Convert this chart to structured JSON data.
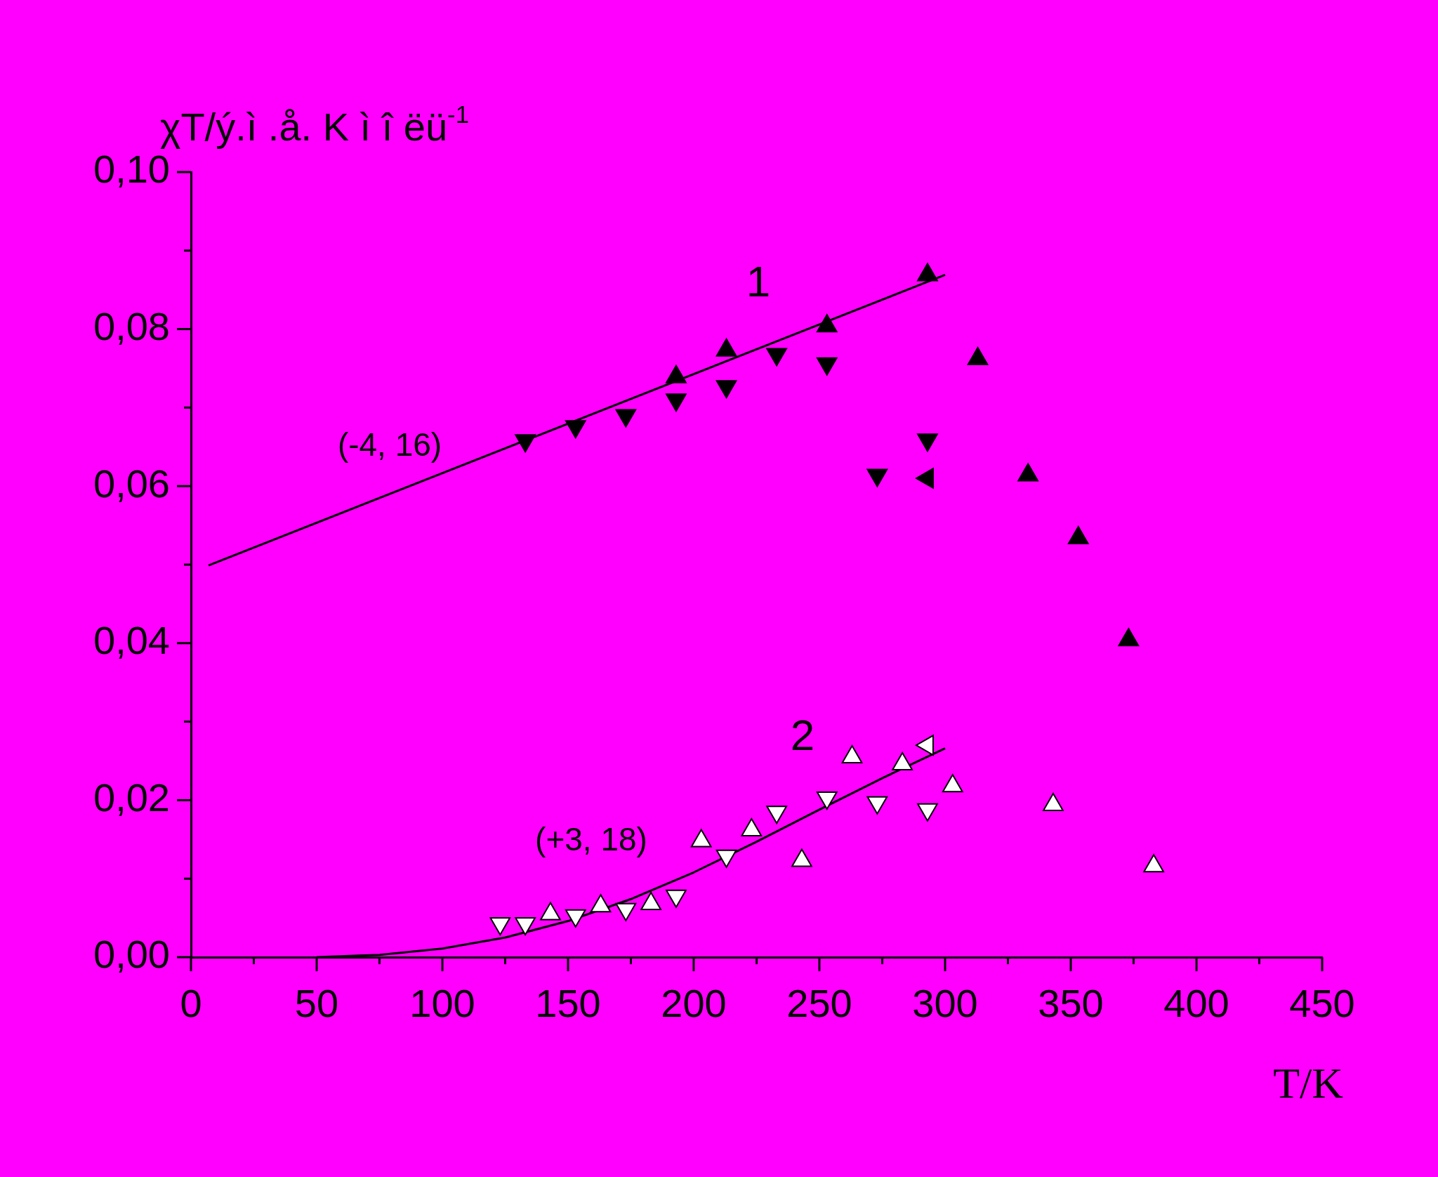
{
  "chart_data": {
    "type": "scatter",
    "xlabel": "T/K",
    "ylabel": "χT/ý.ì .å. K ì î ëü$^{-1}$",
    "xlim": [
      0,
      450
    ],
    "ylim": [
      0,
      0.1
    ],
    "xticks": [
      0,
      {
        "value": 25,
        "label": null
      },
      50,
      {
        "value": 75,
        "label": null
      },
      100,
      {
        "value": 125,
        "label": null
      },
      150,
      {
        "value": 175,
        "label": null
      },
      200,
      {
        "value": 225,
        "label": null
      },
      250,
      {
        "value": 275,
        "label": null
      },
      300,
      {
        "value": 325,
        "label": null
      },
      350,
      {
        "value": 375,
        "label": null
      },
      400,
      {
        "value": 425,
        "label": null
      },
      450
    ],
    "yticks": [
      {
        "value": 0,
        "label": "0,00"
      },
      {
        "value": 0.01,
        "label": null
      },
      {
        "value": 0.02,
        "label": "0,02"
      },
      {
        "value": 0.03,
        "label": null
      },
      {
        "value": 0.04,
        "label": "0,04"
      },
      {
        "value": 0.05,
        "label": null
      },
      {
        "value": 0.06,
        "label": "0,06"
      },
      {
        "value": 0.07,
        "label": null
      },
      {
        "value": 0.08,
        "label": "0,08"
      },
      {
        "value": 0.09,
        "label": null
      },
      {
        "value": 0.1,
        "label": "0,10"
      }
    ],
    "grid": false,
    "legend": false,
    "series": [
      {
        "type": "line",
        "color": "#000000",
        "marker": "none",
        "x": [
          7,
          300
        ],
        "values": [
          0.0499,
          0.0869
        ]
      },
      {
        "type": "line",
        "color": "#000000",
        "marker": "none",
        "x": [
          50,
          75,
          100,
          125,
          150,
          175,
          200,
          225,
          250,
          275,
          300
        ],
        "values": [
          0.0,
          0.0003,
          0.0011,
          0.0025,
          0.0046,
          0.0074,
          0.0108,
          0.0147,
          0.0188,
          0.0228,
          0.0266
        ]
      },
      {
        "color": "#000000",
        "marker": "triangle",
        "x": [
          193,
          213,
          253,
          293,
          313,
          333,
          353,
          373
        ],
        "values": [
          0.0739,
          0.0773,
          0.0804,
          0.0869,
          0.0762,
          0.0614,
          0.0534,
          0.0404
        ]
      },
      {
        "color": "#000000",
        "marker": "triangle-down",
        "x": [
          133,
          153,
          173,
          193,
          213,
          233,
          253,
          273,
          293
        ],
        "values": [
          0.0658,
          0.0676,
          0.069,
          0.071,
          0.0727,
          0.0768,
          0.0756,
          0.0614,
          0.0659
        ]
      },
      {
        "color": "#000000",
        "marker": "triangle-left",
        "x": [
          293
        ],
        "values": [
          0.061
        ]
      },
      {
        "color": "#ffffff",
        "marker": "triangle",
        "x": [
          143,
          163,
          183,
          203,
          223,
          243,
          263,
          283,
          303,
          343,
          383
        ],
        "values": [
          0.0055,
          0.0065,
          0.0068,
          0.0148,
          0.0162,
          0.0123,
          0.0255,
          0.0246,
          0.0218,
          0.0194,
          0.0116
        ]
      },
      {
        "color": "#ffffff",
        "marker": "triangle-down",
        "x": [
          123,
          133,
          153,
          173,
          193,
          213,
          233,
          253,
          273,
          293
        ],
        "values": [
          0.0043,
          0.0043,
          0.0053,
          0.0061,
          0.0078,
          0.0129,
          0.0185,
          0.0203,
          0.0197,
          0.0188
        ]
      },
      {
        "color": "#ffffff",
        "marker": "triangle-left",
        "x": [
          293
        ],
        "values": [
          0.027
        ]
      }
    ],
    "annotations": [
      "1",
      "(-4, 16)",
      "2",
      "(+3, 18)"
    ]
  }
}
